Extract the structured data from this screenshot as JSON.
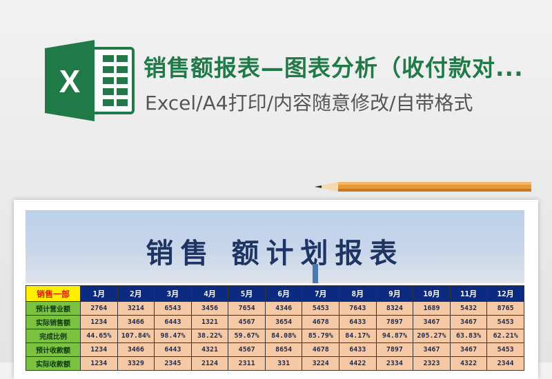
{
  "header": {
    "title": "销售额报表—图表分析（收付款对...",
    "subtitle": "Excel/A4打印/内容随意修改/自带格式",
    "logo_letter": "X",
    "colors": {
      "title": "#1f7a47",
      "logo": "#1f7a47"
    }
  },
  "sheet": {
    "banner_title": "销售 额计划报表",
    "corner": "销售一部",
    "months": [
      "1月",
      "2月",
      "3月",
      "4月",
      "5月",
      "6月",
      "7月",
      "8月",
      "9月",
      "10月",
      "11月",
      "12月"
    ],
    "rows": [
      {
        "label": "预计营业额",
        "values": [
          "2764",
          "3214",
          "6543",
          "3456",
          "7654",
          "4346",
          "5453",
          "7643",
          "8324",
          "1689",
          "5432",
          "8765"
        ]
      },
      {
        "label": "实际销售额",
        "values": [
          "1234",
          "3466",
          "6443",
          "1321",
          "4567",
          "3654",
          "4678",
          "6433",
          "7897",
          "3467",
          "3467",
          "5453"
        ]
      },
      {
        "label": "完成比例",
        "values": [
          "44.65%",
          "107.84%",
          "98.47%",
          "38.22%",
          "59.67%",
          "84.08%",
          "85.79%",
          "84.17%",
          "94.87%",
          "205.27%",
          "63.83%",
          "62.21%"
        ]
      },
      {
        "label": "预计收款额",
        "values": [
          "1234",
          "3466",
          "6443",
          "4321",
          "4567",
          "8654",
          "4678",
          "6433",
          "7897",
          "3467",
          "3467",
          "5453"
        ]
      },
      {
        "label": "实际收款额",
        "values": [
          "1234",
          "3329",
          "2345",
          "2124",
          "2311",
          "331",
          "3224",
          "4422",
          "2334",
          "2323",
          "4322",
          "2344"
        ]
      }
    ]
  }
}
